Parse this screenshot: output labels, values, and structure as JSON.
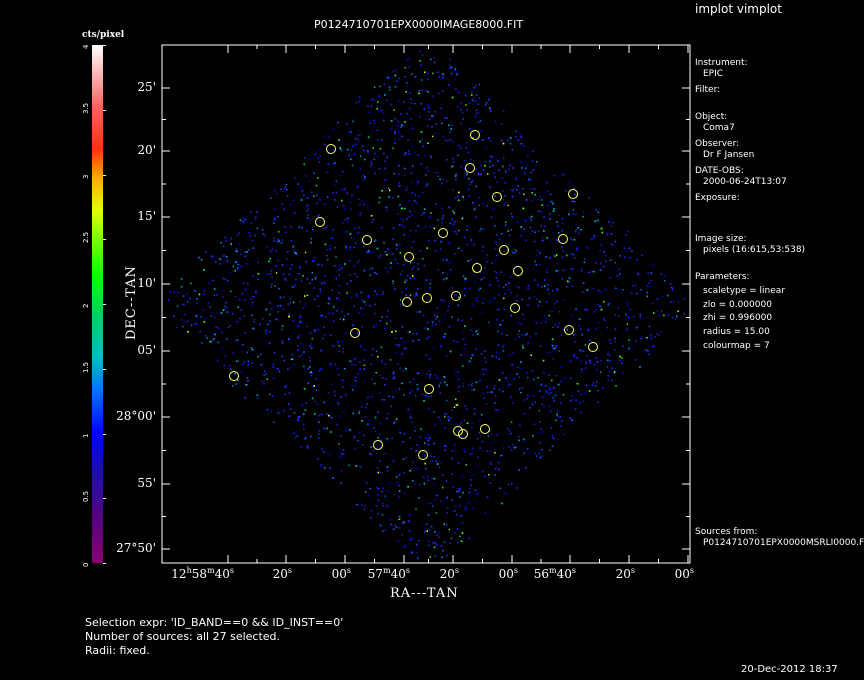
{
  "window": {
    "title": "implot vimplot"
  },
  "plot": {
    "title": "P0124710701EPX0000IMAGE8000.FIT",
    "xlabel": "RA---TAN",
    "ylabel": "DEC--TAN",
    "colorbar_label": "cts/pixel",
    "colorbar_ticks": [
      "0",
      "0.5",
      "1",
      "1.5",
      "2",
      "2.5",
      "3",
      "3.5",
      "4"
    ],
    "y_ticks": [
      "25'",
      "20'",
      "15'",
      "10'",
      "05'",
      "28°00'",
      "55'",
      "27°50'"
    ],
    "x_ticks": [
      {
        "base": "12",
        "parts": [
          [
            "h",
            "58"
          ],
          [
            "m",
            "40"
          ],
          [
            "s",
            ""
          ]
        ]
      },
      {
        "base": "20",
        "parts": [
          [
            "s",
            ""
          ]
        ]
      },
      {
        "base": "00",
        "parts": [
          [
            "s",
            ""
          ]
        ]
      },
      {
        "base": "57",
        "parts": [
          [
            "m",
            "40"
          ],
          [
            "s",
            ""
          ]
        ]
      },
      {
        "base": "20",
        "parts": [
          [
            "s",
            ""
          ]
        ]
      },
      {
        "base": "00",
        "parts": [
          [
            "s",
            ""
          ]
        ]
      },
      {
        "base": "56",
        "parts": [
          [
            "m",
            "40"
          ],
          [
            "s",
            ""
          ]
        ]
      },
      {
        "base": "20",
        "parts": [
          [
            "s",
            ""
          ]
        ]
      },
      {
        "base": "00",
        "parts": [
          [
            "s",
            ""
          ]
        ]
      }
    ],
    "colors": {
      "source_circle": "#ffff66",
      "frame": "#ffffff"
    }
  },
  "sidebar": {
    "instrument_label": "Instrument:",
    "instrument_value": "EPIC",
    "filter_label": "Filter:",
    "object_label": "Object:",
    "object_value": "Coma7",
    "observer_label": "Observer:",
    "observer_value": "Dr F Jansen",
    "date_label": "DATE-OBS:",
    "date_value": "2000-06-24T13:07",
    "exposure_label": "Exposure:",
    "image_size_label": "Image size:",
    "image_size_value": "pixels (16:615,53:538)",
    "parameters_label": "Parameters:",
    "param_scaletype": "scaletype = linear",
    "param_zlo": "zlo = 0.000000",
    "param_zhi": "zhi = 0.996000",
    "param_radius": "radius = 15.00",
    "param_colourmap": "colourmap = 7",
    "sources_label": "Sources from:",
    "sources_value": "P0124710701EPX0000MSRLI0000.F"
  },
  "footer": {
    "selection": "Selection expr: 'ID_BAND==0 && ID_INST==0'",
    "number": "Number of sources: all 27 selected.",
    "radii": "Radii: fixed.",
    "timestamp": "20-Dec-2012 18:37"
  }
}
